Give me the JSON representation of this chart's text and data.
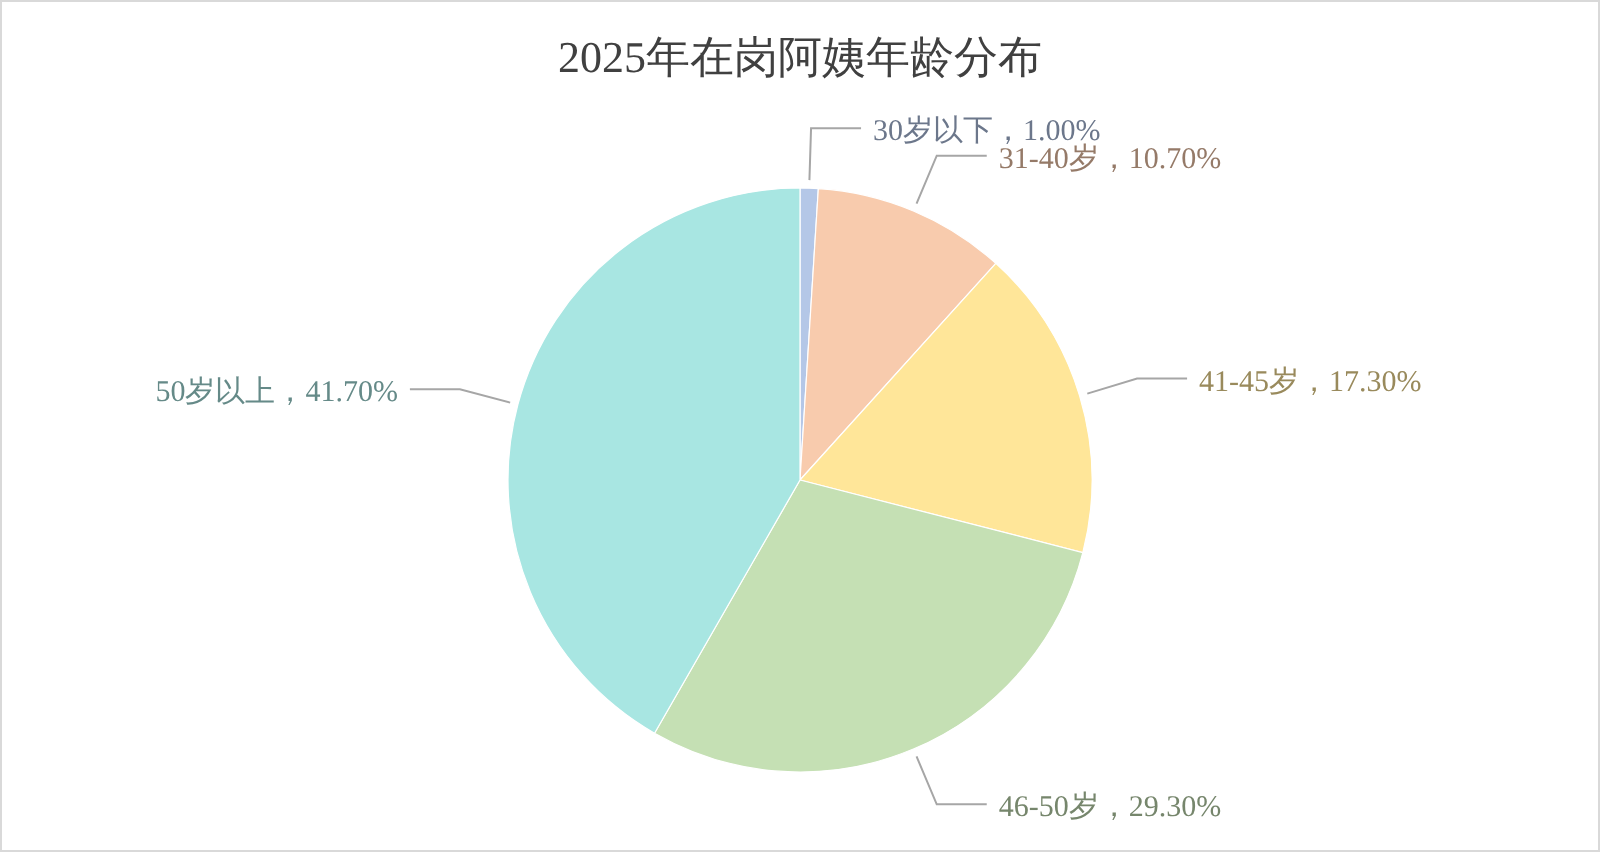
{
  "chart_data": {
    "type": "pie",
    "title": "2025年在岗阿姨年龄分布",
    "categories": [
      "30岁以下",
      "31-40岁",
      "41-45岁",
      "46-50岁",
      "50岁以上"
    ],
    "values": [
      1.0,
      10.7,
      17.3,
      29.3,
      41.7
    ],
    "colors": [
      "#b4c7e7",
      "#f8cbad",
      "#ffe699",
      "#c5e0b4",
      "#a8e6e2"
    ],
    "value_labels": [
      "，1.00%",
      "，10.70%",
      "，17.30%",
      "，29.30%",
      "，41.70%"
    ]
  }
}
